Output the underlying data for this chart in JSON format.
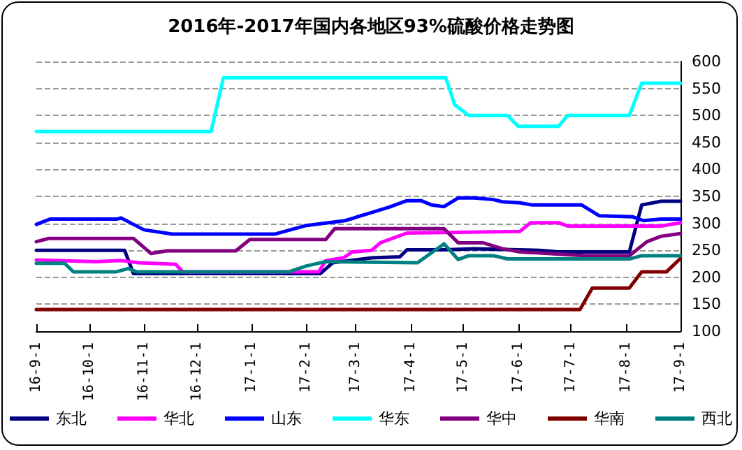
{
  "chart_data": {
    "type": "line",
    "title": "2016年-2017年国内各地区93%硫酸价格走势图",
    "xlim": [
      "2016-09-01",
      "2017-09-01"
    ],
    "xticks": [
      {
        "value": "2016-09-01",
        "label": "16-9-1"
      },
      {
        "value": "2016-10-01",
        "label": "16-10-1"
      },
      {
        "value": "2016-11-01",
        "label": "16-11-1"
      },
      {
        "value": "2016-12-01",
        "label": "16-12-1"
      },
      {
        "value": "2017-01-01",
        "label": "17-1-1"
      },
      {
        "value": "2017-02-01",
        "label": "17-2-1"
      },
      {
        "value": "2017-03-01",
        "label": "17-3-1"
      },
      {
        "value": "2017-04-01",
        "label": "17-4-1"
      },
      {
        "value": "2017-05-01",
        "label": "17-5-1"
      },
      {
        "value": "2017-06-01",
        "label": "17-6-1"
      },
      {
        "value": "2017-07-01",
        "label": "17-7-1"
      },
      {
        "value": "2017-08-01",
        "label": "17-8-1"
      },
      {
        "value": "2017-09-01",
        "label": "17-9-1"
      }
    ],
    "ylim": [
      100,
      600
    ],
    "yticks": [
      100,
      150,
      200,
      250,
      300,
      350,
      400,
      450,
      500,
      550,
      600
    ],
    "grid": "y",
    "legend": "bottom",
    "marker": "none",
    "line_style": "solid",
    "series": [
      {
        "name": "东北",
        "color": "#000080",
        "x": [
          "2016-09-01",
          "2016-10-21",
          "2016-10-26",
          "2017-02-09",
          "2017-02-16",
          "2017-03-10",
          "2017-03-26",
          "2017-03-30",
          "2017-04-20",
          "2017-05-07",
          "2017-06-13",
          "2017-06-24",
          "2017-08-03",
          "2017-08-10",
          "2017-08-21",
          "2017-09-01"
        ],
        "values": [
          250,
          250,
          207,
          207,
          227,
          236,
          238,
          251,
          251,
          253,
          250,
          247,
          247,
          334,
          341,
          341
        ]
      },
      {
        "name": "华北",
        "color": "#ff00ff",
        "x": [
          "2016-09-01",
          "2016-10-05",
          "2016-10-19",
          "2016-10-29",
          "2016-11-19",
          "2016-11-23",
          "2017-02-08",
          "2017-02-12",
          "2017-02-22",
          "2017-02-27",
          "2017-03-10",
          "2017-03-15",
          "2017-03-30",
          "2017-06-02",
          "2017-06-08",
          "2017-06-24",
          "2017-06-29",
          "2017-08-21",
          "2017-09-01"
        ],
        "values": [
          232,
          229,
          231,
          227,
          224,
          210,
          210,
          231,
          236,
          247,
          250,
          264,
          282,
          285,
          301,
          301,
          295,
          295,
          301
        ]
      },
      {
        "name": "山东",
        "color": "#0000ff",
        "x": [
          "2016-09-01",
          "2016-09-09",
          "2016-10-17",
          "2016-10-19",
          "2016-11-01",
          "2016-11-17",
          "2017-01-14",
          "2017-02-01",
          "2017-02-23",
          "2017-03-10",
          "2017-03-20",
          "2017-03-30",
          "2017-04-07",
          "2017-04-13",
          "2017-04-20",
          "2017-04-28",
          "2017-05-07",
          "2017-05-18",
          "2017-05-23",
          "2017-06-02",
          "2017-06-09",
          "2017-07-07",
          "2017-07-17",
          "2017-08-05",
          "2017-08-11",
          "2017-08-21",
          "2017-09-01"
        ],
        "values": [
          298,
          308,
          308,
          310,
          288,
          280,
          280,
          296,
          305,
          320,
          330,
          342,
          342,
          334,
          331,
          347,
          347,
          344,
          340,
          338,
          334,
          334,
          314,
          312,
          305,
          308,
          308
        ]
      },
      {
        "name": "华东",
        "color": "#00ffff",
        "x": [
          "2016-09-01",
          "2016-12-09",
          "2016-12-16",
          "2017-04-21",
          "2017-04-26",
          "2017-05-04",
          "2017-05-26",
          "2017-06-01",
          "2017-06-24",
          "2017-06-29",
          "2017-08-03",
          "2017-08-10",
          "2017-09-01"
        ],
        "values": [
          470,
          470,
          570,
          570,
          520,
          500,
          500,
          480,
          480,
          500,
          500,
          560,
          560
        ]
      },
      {
        "name": "华中",
        "color": "#800080",
        "x": [
          "2016-09-01",
          "2016-09-08",
          "2016-10-26",
          "2016-11-05",
          "2016-11-14",
          "2016-12-23",
          "2016-12-31",
          "2017-02-12",
          "2017-02-17",
          "2017-04-03",
          "2017-04-20",
          "2017-04-28",
          "2017-05-12",
          "2017-05-23",
          "2017-06-02",
          "2017-06-18",
          "2017-07-09",
          "2017-08-03",
          "2017-08-13",
          "2017-08-21",
          "2017-09-01"
        ],
        "values": [
          266,
          272,
          272,
          244,
          249,
          249,
          270,
          270,
          290,
          290,
          290,
          264,
          264,
          253,
          247,
          244,
          240,
          240,
          266,
          276,
          281
        ]
      },
      {
        "name": "华南",
        "color": "#800000",
        "x": [
          "2016-09-01",
          "2017-07-06",
          "2017-07-13",
          "2017-08-03",
          "2017-08-10",
          "2017-08-24",
          "2017-09-01"
        ],
        "values": [
          140,
          140,
          180,
          180,
          210,
          210,
          235
        ]
      },
      {
        "name": "西北",
        "color": "#008080",
        "x": [
          "2016-09-01",
          "2016-09-17",
          "2016-09-22",
          "2016-10-16",
          "2016-10-23",
          "2016-10-28",
          "2017-01-22",
          "2017-02-01",
          "2017-02-12",
          "2017-04-05",
          "2017-04-20",
          "2017-04-28",
          "2017-05-04",
          "2017-05-18",
          "2017-05-26",
          "2017-08-03",
          "2017-08-10",
          "2017-09-01"
        ],
        "values": [
          226,
          226,
          210,
          210,
          216,
          210,
          210,
          221,
          229,
          227,
          262,
          233,
          240,
          240,
          234,
          234,
          240,
          240
        ]
      }
    ]
  }
}
